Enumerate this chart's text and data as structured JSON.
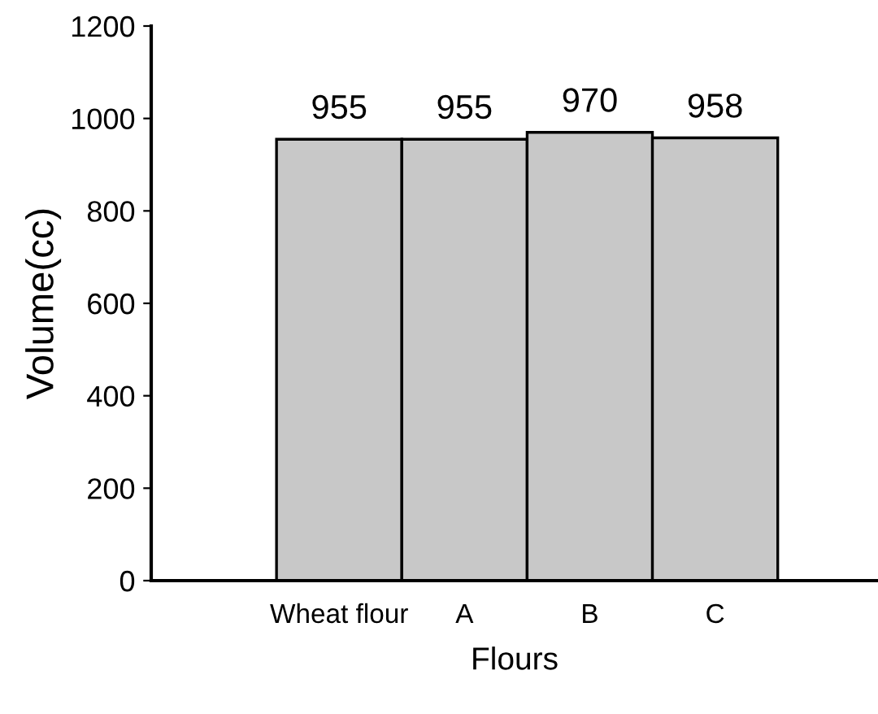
{
  "chart_data": {
    "type": "bar",
    "xlabel": "Flours",
    "ylabel": "Volume(cc)",
    "categories": [
      "Wheat flour",
      "A",
      "B",
      "C"
    ],
    "values": [
      955,
      955,
      970,
      958
    ],
    "color": "#c8c8c8",
    "ylim": [
      0,
      1200
    ],
    "yticks": [
      0,
      200,
      400,
      600,
      800,
      1000,
      1200
    ],
    "data_labels": true,
    "grid": false,
    "legend": false
  }
}
